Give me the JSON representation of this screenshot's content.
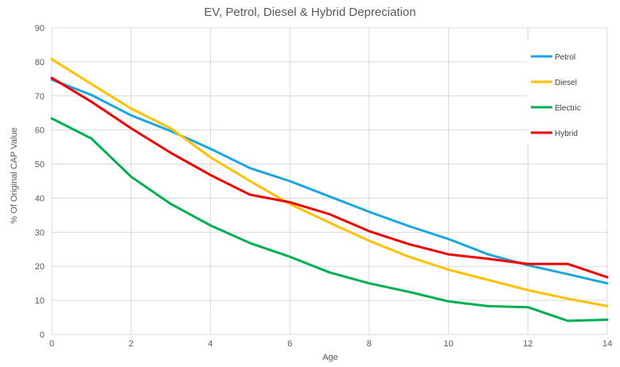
{
  "chart_data": {
    "type": "line",
    "title": "EV, Petrol, Diesel & Hybrid Depreciation",
    "xlabel": "Age",
    "ylabel": "% Of Original CAP Value",
    "xlim": [
      0,
      14
    ],
    "ylim": [
      0,
      90
    ],
    "x_ticks": [
      0,
      2,
      4,
      6,
      8,
      10,
      12,
      14
    ],
    "y_ticks": [
      0,
      10,
      20,
      30,
      40,
      50,
      60,
      70,
      80,
      90
    ],
    "grid": true,
    "legend_position": "top-right",
    "x": [
      0,
      1,
      2,
      3,
      4,
      5,
      6,
      7,
      8,
      9,
      10,
      11,
      12,
      13,
      14
    ],
    "series": [
      {
        "name": "Petrol",
        "color": "#1aa7e0",
        "values": [
          74.8,
          70.3,
          64.3,
          59.7,
          54.5,
          48.8,
          45.0,
          40.5,
          36.0,
          31.8,
          28.0,
          23.5,
          20.3,
          17.7,
          15.0
        ]
      },
      {
        "name": "Diesel",
        "color": "#ffc000",
        "values": [
          80.8,
          73.5,
          66.3,
          60.5,
          52.0,
          45.0,
          38.3,
          32.8,
          27.5,
          22.8,
          19.0,
          16.0,
          13.0,
          10.5,
          8.3
        ]
      },
      {
        "name": "Electric",
        "color": "#00b050",
        "values": [
          63.4,
          57.5,
          46.3,
          38.3,
          32.0,
          26.8,
          22.8,
          18.2,
          15.0,
          12.5,
          9.7,
          8.3,
          8.0,
          4.0,
          4.3
        ]
      },
      {
        "name": "Hybrid",
        "color": "#ee0000",
        "values": [
          75.3,
          68.3,
          60.5,
          53.3,
          46.8,
          41.0,
          38.8,
          35.3,
          30.3,
          26.5,
          23.5,
          22.2,
          20.7,
          20.7,
          16.8
        ]
      }
    ]
  }
}
